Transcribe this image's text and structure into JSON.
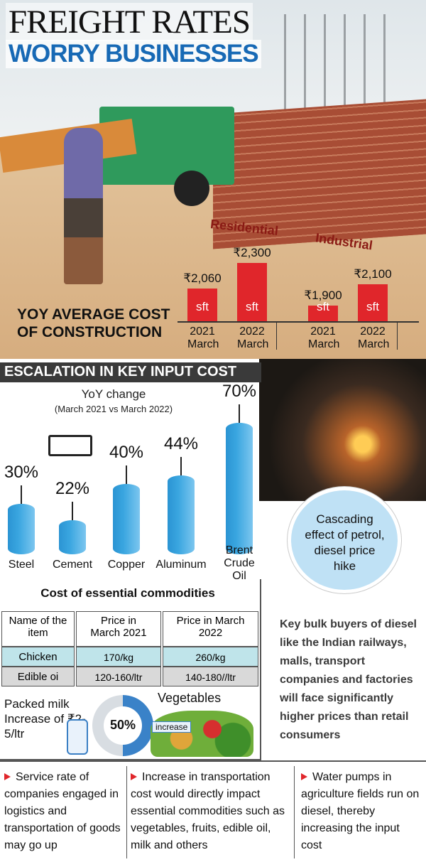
{
  "header": {
    "line1": "FREIGHT RATES",
    "line2": "WORRY BUSINESSES"
  },
  "chart_data": [
    {
      "type": "bar",
      "title": "YOY AVERAGE COST OF CONSTRUCTION",
      "groups": [
        "Residential",
        "Industrial"
      ],
      "categories": [
        "2021 March",
        "2022 March",
        "2021 March",
        "2022 March"
      ],
      "values": [
        2060,
        2300,
        1900,
        2100
      ],
      "value_labels": [
        "₹2,060",
        "₹2,300",
        "₹1,900",
        "₹2,100"
      ],
      "unit": "sft",
      "color": "#e0262b",
      "ylim": [
        1750,
        2400
      ]
    },
    {
      "type": "cylinder",
      "title": "ESCALATION IN KEY INPUT COST",
      "subtitle": "YoY change",
      "note": "(March 2021 vs March 2022)",
      "categories": [
        "Steel",
        "Cement",
        "Copper",
        "Aluminum",
        "Brent Crude Oil"
      ],
      "values": [
        30,
        22,
        40,
        44,
        70
      ],
      "value_labels": [
        "30%",
        "22%",
        "40%",
        "44%",
        "70%"
      ],
      "color": "#3aa6e0",
      "ylim": [
        5,
        75
      ]
    }
  ],
  "callout": "Cascading effect of petrol, diesel price hike",
  "table": {
    "title": "Cost of essential commodities",
    "columns": [
      "Name of the item",
      "Price in March 2021",
      "Price in March 2022"
    ],
    "rows": [
      [
        "Chicken",
        "170/kg",
        "260/kg"
      ],
      [
        "Edible oi",
        "120-160/ltr",
        "140-180//ltr"
      ]
    ]
  },
  "milk": "Packed milk Increase of ₹2-5/ltr",
  "vegetables": {
    "label": "Vegetables",
    "value": "50%",
    "note": "increase"
  },
  "buyers_note": "Key bulk buyers of diesel like the Indian railways, malls, transport companies and factories will face significantly higher prices than retail consumers",
  "bullets": [
    "Service rate of companies engaged in logistics and transportation of goods may go up",
    "Increase in transportation cost would directly impact essential commodities such as vegetables, fruits, edible oil, milk and others",
    "Water pumps in agriculture fields run on diesel, thereby increasing the input cost"
  ]
}
